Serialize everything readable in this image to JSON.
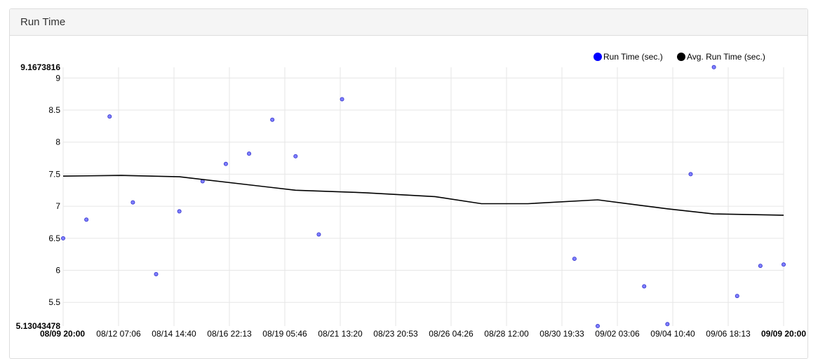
{
  "panel": {
    "title": "Run Time"
  },
  "chart_data": {
    "type": "scatter",
    "y_ticks": [
      "9",
      "8.5",
      "8",
      "7.5",
      "7",
      "6.5",
      "6",
      "5.5"
    ],
    "y_max_label": "9.1673816",
    "y_min_label": "5.13043478",
    "ylim": [
      5.13043478,
      9.1673816
    ],
    "x_ticks": [
      "08/09 20:00",
      "08/12 07:06",
      "08/14 14:40",
      "08/16 22:13",
      "08/19 05:46",
      "08/21 13:20",
      "08/23 20:53",
      "08/26 04:26",
      "08/28 12:00",
      "08/30 19:33",
      "09/02 03:06",
      "09/04 10:40",
      "09/06 18:13",
      "09/09 20:00"
    ],
    "legend": [
      {
        "label": "Run Time (sec.)",
        "color": "#0000ff"
      },
      {
        "label": "Avg. Run Time (sec.)",
        "color": "#000000"
      }
    ],
    "series": [
      {
        "name": "Run Time (sec.)",
        "kind": "points",
        "color": "#7f7fff",
        "x": [
          0.0,
          1.0,
          2.0,
          3.0,
          4.0,
          5.0,
          6.0,
          7.0,
          8.0,
          9.0,
          10.0,
          11.0,
          12.0,
          22.0,
          23.0,
          25.0,
          26.0,
          27.0,
          28.0,
          29.0,
          30.0,
          31.0
        ],
        "y": [
          6.5,
          6.79,
          8.4,
          7.06,
          5.94,
          6.92,
          7.39,
          7.66,
          7.82,
          8.35,
          7.78,
          6.56,
          8.67,
          6.18,
          5.13,
          5.75,
          5.16,
          7.5,
          9.17,
          5.6,
          6.07,
          6.09
        ]
      },
      {
        "name": "Avg. Run Time (sec.)",
        "kind": "line",
        "color": "#000000",
        "x": [
          0.0,
          2.5,
          5.0,
          10.0,
          13.0,
          16.0,
          18.0,
          20.0,
          23.0,
          26.0,
          28.0,
          31.0
        ],
        "y": [
          7.47,
          7.48,
          7.46,
          7.25,
          7.21,
          7.15,
          7.04,
          7.04,
          7.1,
          6.96,
          6.88,
          6.86
        ]
      }
    ],
    "grid": true,
    "legend_position": "top-right"
  }
}
